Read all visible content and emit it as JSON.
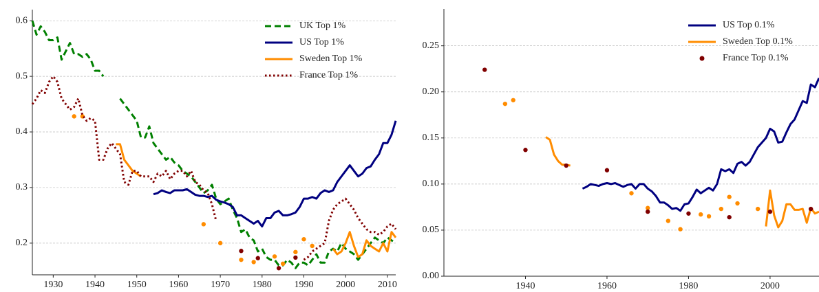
{
  "chart_data": [
    {
      "type": "line",
      "xlim": [
        1925,
        2012
      ],
      "ylim": [
        0.143,
        0.62
      ],
      "xticks": [
        1930,
        1940,
        1950,
        1960,
        1970,
        1980,
        1990,
        2000,
        2010
      ],
      "yticks": [
        0.2,
        0.3,
        0.4,
        0.5,
        0.6
      ],
      "grid": true,
      "legend": "upper right",
      "series": [
        {
          "name": "UK Top 1%",
          "color": "#008000",
          "style": "dashed",
          "x": [
            1925,
            1926,
            1927,
            1928,
            1929,
            1930,
            1931,
            1932,
            1933,
            1934,
            1935,
            1936,
            1937,
            1938,
            1939,
            1940,
            1941,
            1942,
            1943,
            1944,
            1945,
            1946,
            1947,
            1948,
            1949,
            1950,
            1951,
            1952,
            1953,
            1954,
            1955,
            1956,
            1957,
            1958,
            1959,
            1960,
            1961,
            1962,
            1963,
            1964,
            1965,
            1966,
            1967,
            1968,
            1969,
            1970,
            1971,
            1972,
            1973,
            1974,
            1975,
            1976,
            1977,
            1978,
            1979,
            1980,
            1981,
            1982,
            1983,
            1984,
            1985,
            1986,
            1987,
            1988,
            1989,
            1990,
            1991,
            1992,
            1993,
            1994,
            1995,
            1996,
            1997,
            1998,
            1999,
            2000,
            2001,
            2002,
            2003,
            2004,
            2005,
            2006,
            2007,
            2008,
            2009,
            2010,
            2011,
            2012
          ],
          "values": [
            0.6,
            0.575,
            0.59,
            0.58,
            0.565,
            0.565,
            0.57,
            0.53,
            0.545,
            0.56,
            0.54,
            0.54,
            0.535,
            0.54,
            0.53,
            0.51,
            0.51,
            0.5,
            null,
            null,
            null,
            0.46,
            0.45,
            0.44,
            0.43,
            0.42,
            0.39,
            0.39,
            0.41,
            0.38,
            0.37,
            0.36,
            0.35,
            0.355,
            0.345,
            0.34,
            0.33,
            0.325,
            0.32,
            0.31,
            0.3,
            0.29,
            0.295,
            0.305,
            0.28,
            0.27,
            0.275,
            0.28,
            0.26,
            0.245,
            0.22,
            0.225,
            0.21,
            0.205,
            0.185,
            0.19,
            0.175,
            0.17,
            0.17,
            0.16,
            0.16,
            0.17,
            0.165,
            0.155,
            0.165,
            0.165,
            0.16,
            0.17,
            0.18,
            0.165,
            0.165,
            0.185,
            0.19,
            0.185,
            0.2,
            0.19,
            0.185,
            0.18,
            0.17,
            0.18,
            0.19,
            0.2,
            0.21,
            0.205,
            0.2,
            0.21,
            0.205,
            0.2
          ]
        },
        {
          "name": "US Top 1%",
          "color": "#000080",
          "style": "solid",
          "x": [
            1954,
            1955,
            1956,
            1957,
            1958,
            1959,
            1960,
            1961,
            1962,
            1963,
            1964,
            1965,
            1966,
            1967,
            1968,
            1969,
            1970,
            1971,
            1972,
            1973,
            1974,
            1975,
            1976,
            1977,
            1978,
            1979,
            1980,
            1981,
            1982,
            1983,
            1984,
            1985,
            1986,
            1987,
            1988,
            1989,
            1990,
            1991,
            1992,
            1993,
            1994,
            1995,
            1996,
            1997,
            1998,
            1999,
            2000,
            2001,
            2002,
            2003,
            2004,
            2005,
            2006,
            2007,
            2008,
            2009,
            2010,
            2011,
            2012
          ],
          "values": [
            0.288,
            0.29,
            0.295,
            0.292,
            0.29,
            0.295,
            0.295,
            0.295,
            0.297,
            0.292,
            0.287,
            0.285,
            0.285,
            0.283,
            0.285,
            0.278,
            0.275,
            0.273,
            0.27,
            0.265,
            0.25,
            0.25,
            0.245,
            0.24,
            0.235,
            0.24,
            0.23,
            0.245,
            0.245,
            0.255,
            0.258,
            0.25,
            0.25,
            0.252,
            0.255,
            0.265,
            0.28,
            0.28,
            0.283,
            0.28,
            0.29,
            0.295,
            0.292,
            0.295,
            0.31,
            0.32,
            0.33,
            0.34,
            0.33,
            0.32,
            0.325,
            0.335,
            0.338,
            0.35,
            0.36,
            0.38,
            0.38,
            0.395,
            0.42
          ]
        },
        {
          "name": "Sweden Top 1%",
          "color": "#ff8c00",
          "style": "solid",
          "x": [
            1935,
            1936,
            1937,
            1938,
            1945,
            1946,
            1947,
            1948,
            1949,
            1950,
            1951,
            1952,
            1966,
            1967,
            1970,
            1971,
            1975,
            1976,
            1978,
            1979,
            1983,
            1984,
            1985,
            1986,
            1988,
            1989,
            1990,
            1991,
            1992,
            1993,
            1997,
            1998,
            1999,
            2000,
            2001,
            2002,
            2003,
            2004,
            2005,
            2006,
            2007,
            2008,
            2009,
            2010,
            2011,
            2012
          ],
          "values": [
            0.428,
            null,
            0.428,
            null,
            0.378,
            0.378,
            0.35,
            0.34,
            0.33,
            0.325,
            0.32,
            null,
            0.234,
            null,
            0.2,
            null,
            0.17,
            null,
            0.166,
            null,
            0.176,
            null,
            0.163,
            null,
            0.184,
            null,
            0.207,
            null,
            0.195,
            null,
            0.19,
            0.18,
            0.185,
            0.2,
            0.22,
            0.195,
            0.175,
            0.18,
            0.205,
            0.195,
            0.19,
            0.185,
            0.2,
            0.185,
            0.22,
            0.21
          ]
        },
        {
          "name": "France Top 1%",
          "color": "#800000",
          "style": "dotted",
          "x": [
            1925,
            1926,
            1927,
            1928,
            1929,
            1930,
            1931,
            1932,
            1933,
            1934,
            1935,
            1936,
            1937,
            1938,
            1939,
            1940,
            1941,
            1942,
            1943,
            1944,
            1945,
            1946,
            1947,
            1948,
            1949,
            1950,
            1951,
            1952,
            1953,
            1954,
            1955,
            1956,
            1957,
            1958,
            1959,
            1960,
            1961,
            1962,
            1963,
            1964,
            1965,
            1966,
            1967,
            1968,
            1969,
            1970,
            1975,
            1976,
            1979,
            1980,
            1984,
            1985,
            1988,
            1989,
            1990,
            1991,
            1992,
            1993,
            1994,
            1995,
            1996,
            1997,
            1998,
            1999,
            2000,
            2001,
            2002,
            2003,
            2004,
            2005,
            2006,
            2007,
            2008,
            2009,
            2010,
            2011,
            2012
          ],
          "values": [
            0.45,
            0.46,
            0.475,
            0.47,
            0.49,
            0.5,
            0.49,
            0.46,
            0.45,
            0.44,
            0.445,
            0.46,
            0.43,
            0.42,
            0.425,
            0.42,
            0.35,
            0.35,
            0.37,
            0.38,
            0.37,
            0.36,
            0.31,
            0.305,
            0.33,
            0.33,
            0.32,
            0.32,
            0.32,
            0.31,
            0.325,
            0.32,
            0.33,
            0.315,
            0.325,
            0.33,
            0.33,
            0.32,
            0.33,
            0.31,
            0.305,
            0.295,
            0.29,
            0.27,
            0.24,
            null,
            0.186,
            null,
            0.173,
            null,
            0.155,
            null,
            0.174,
            null,
            0.17,
            0.175,
            0.185,
            0.19,
            0.195,
            0.2,
            0.24,
            0.26,
            0.27,
            0.275,
            0.28,
            0.27,
            0.26,
            0.245,
            0.235,
            0.225,
            0.22,
            0.22,
            0.215,
            0.22,
            0.23,
            0.235,
            0.225
          ]
        }
      ]
    },
    {
      "type": "line",
      "xlim": [
        1920,
        2012
      ],
      "ylim": [
        0,
        0.29
      ],
      "xticks": [
        1940,
        1960,
        1980,
        2000
      ],
      "yticks": [
        {
          "value": 0,
          "label": "0.00"
        },
        {
          "value": 0.05,
          "label": "0.05"
        },
        {
          "value": 0.1,
          "label": "0.10"
        },
        {
          "value": 0.15,
          "label": "0.15"
        },
        {
          "value": 0.2,
          "label": "0.20"
        },
        {
          "value": 0.25,
          "label": "0.25"
        }
      ],
      "grid": true,
      "legend": "upper right",
      "series": [
        {
          "name": "US Top 0.1%",
          "color": "#000080",
          "style": "solid",
          "x": [
            1954,
            1955,
            1956,
            1957,
            1958,
            1959,
            1960,
            1961,
            1962,
            1963,
            1964,
            1965,
            1966,
            1967,
            1968,
            1969,
            1970,
            1971,
            1972,
            1973,
            1974,
            1975,
            1976,
            1977,
            1978,
            1979,
            1980,
            1981,
            1982,
            1983,
            1984,
            1985,
            1986,
            1987,
            1988,
            1989,
            1990,
            1991,
            1992,
            1993,
            1994,
            1995,
            1996,
            1997,
            1998,
            1999,
            2000,
            2001,
            2002,
            2003,
            2004,
            2005,
            2006,
            2007,
            2008,
            2009,
            2010,
            2011,
            2012
          ],
          "values": [
            0.095,
            0.097,
            0.1,
            0.099,
            0.098,
            0.1,
            0.101,
            0.1,
            0.101,
            0.099,
            0.097,
            0.099,
            0.1,
            0.095,
            0.1,
            0.1,
            0.095,
            0.092,
            0.087,
            0.08,
            0.08,
            0.077,
            0.073,
            0.074,
            0.071,
            0.078,
            0.079,
            0.086,
            0.094,
            0.09,
            0.093,
            0.096,
            0.093,
            0.1,
            0.116,
            0.114,
            0.116,
            0.112,
            0.122,
            0.124,
            0.12,
            0.124,
            0.132,
            0.14,
            0.145,
            0.15,
            0.16,
            0.157,
            0.145,
            0.146,
            0.156,
            0.165,
            0.17,
            0.18,
            0.19,
            0.188,
            0.208,
            0.205,
            0.215
          ]
        },
        {
          "name": "Sweden Top 0.1%",
          "color": "#ff8c00",
          "style": "solid",
          "x": [
            1935,
            1936,
            1937,
            1938,
            1945,
            1946,
            1947,
            1948,
            1949,
            1950,
            1951,
            1952,
            1966,
            1967,
            1970,
            1971,
            1975,
            1976,
            1978,
            1979,
            1983,
            1984,
            1985,
            1986,
            1988,
            1989,
            1990,
            1991,
            1992,
            1993,
            1997,
            1998,
            1999,
            2000,
            2001,
            2002,
            2003,
            2004,
            2005,
            2006,
            2007,
            2008,
            2009,
            2010,
            2011,
            2012
          ],
          "values": [
            0.187,
            null,
            0.191,
            null,
            0.151,
            0.148,
            0.132,
            0.125,
            0.121,
            0.121,
            0.12,
            null,
            0.09,
            null,
            0.074,
            null,
            0.06,
            null,
            0.051,
            null,
            0.067,
            null,
            0.065,
            null,
            0.073,
            null,
            0.086,
            null,
            0.079,
            null,
            0.073,
            null,
            0.054,
            0.093,
            0.066,
            0.053,
            0.06,
            0.078,
            0.078,
            0.072,
            0.072,
            0.073,
            0.058,
            0.074,
            0.068,
            0.07
          ]
        },
        {
          "name": "France Top 0.1%",
          "color": "#800000",
          "style": "markers",
          "x": [
            1930,
            1940,
            1950,
            1960,
            1970,
            1980,
            1990,
            2000,
            2010
          ],
          "values": [
            0.224,
            0.137,
            0.12,
            0.115,
            0.07,
            0.068,
            0.064,
            0.07,
            0.073
          ]
        }
      ]
    }
  ]
}
